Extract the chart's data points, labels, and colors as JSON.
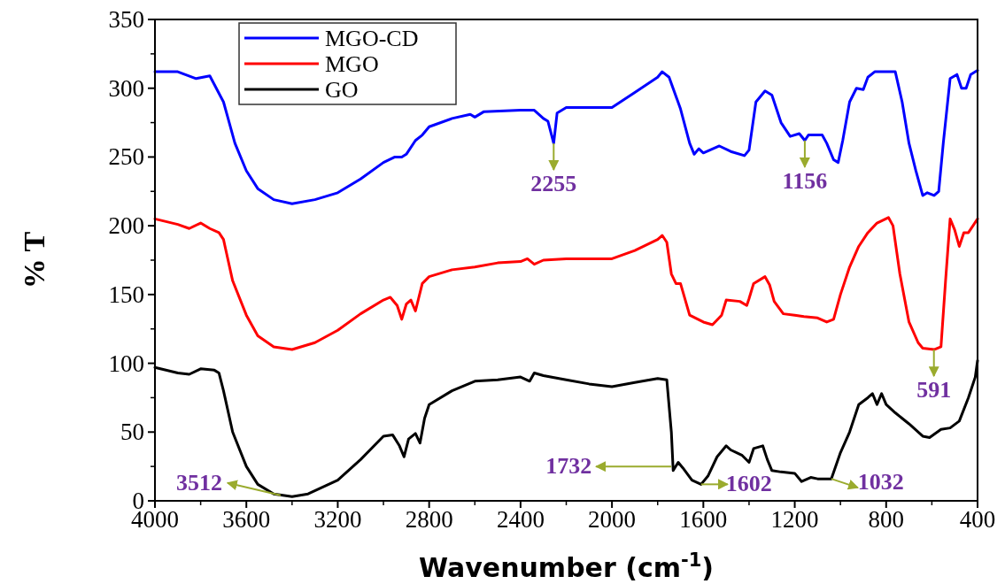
{
  "chart_data": {
    "type": "line",
    "xlabel": "Wavenumber (cm$^{-1}$)",
    "ylabel": "% T",
    "xlim": [
      4000,
      400
    ],
    "xticks": [
      4000,
      3600,
      3200,
      2800,
      2400,
      2000,
      1600,
      1200,
      800,
      400
    ],
    "ylim": [
      0,
      350
    ],
    "yticks": [
      0,
      50,
      100,
      150,
      200,
      250,
      300,
      350
    ],
    "grid": false,
    "legend": "top left",
    "line_style": "solid",
    "series": [
      {
        "name": "MGO-CD",
        "color": "#0000ff",
        "x": [
          4000,
          3900,
          3820,
          3760,
          3700,
          3650,
          3600,
          3550,
          3480,
          3400,
          3300,
          3200,
          3100,
          3000,
          2950,
          2920,
          2900,
          2860,
          2830,
          2800,
          2700,
          2620,
          2600,
          2560,
          2400,
          2340,
          2300,
          2280,
          2255,
          2240,
          2200,
          2100,
          2000,
          1900,
          1800,
          1780,
          1750,
          1700,
          1660,
          1640,
          1620,
          1600,
          1530,
          1480,
          1420,
          1400,
          1370,
          1330,
          1300,
          1260,
          1220,
          1180,
          1156,
          1140,
          1080,
          1060,
          1030,
          1010,
          990,
          960,
          930,
          900,
          880,
          850,
          760,
          730,
          700,
          670,
          640,
          620,
          590,
          570,
          550,
          520,
          490,
          470,
          450,
          430,
          400
        ],
        "values": [
          312,
          312,
          307,
          309,
          290,
          260,
          240,
          227,
          219,
          216,
          219,
          224,
          234,
          246,
          250,
          250,
          252,
          262,
          266,
          272,
          278,
          281,
          279,
          283,
          284,
          284,
          278,
          276,
          260,
          282,
          286,
          286,
          286,
          297,
          308,
          312,
          308,
          285,
          260,
          252,
          256,
          253,
          258,
          254,
          251,
          255,
          290,
          298,
          295,
          275,
          265,
          267,
          262,
          266,
          266,
          260,
          248,
          246,
          262,
          290,
          300,
          299,
          308,
          312,
          312,
          290,
          260,
          240,
          222,
          224,
          222,
          225,
          260,
          307,
          310,
          300,
          300,
          310,
          313
        ]
      },
      {
        "name": "MGO",
        "color": "#ff0000",
        "x": [
          4000,
          3900,
          3850,
          3800,
          3760,
          3720,
          3700,
          3660,
          3600,
          3550,
          3480,
          3400,
          3300,
          3200,
          3100,
          3000,
          2970,
          2940,
          2920,
          2900,
          2880,
          2860,
          2830,
          2800,
          2700,
          2600,
          2500,
          2400,
          2370,
          2340,
          2300,
          2200,
          2000,
          1900,
          1800,
          1780,
          1760,
          1740,
          1720,
          1700,
          1660,
          1600,
          1560,
          1520,
          1500,
          1440,
          1410,
          1400,
          1380,
          1330,
          1310,
          1290,
          1250,
          1200,
          1160,
          1100,
          1060,
          1030,
          1000,
          960,
          920,
          880,
          840,
          790,
          770,
          740,
          700,
          660,
          640,
          590,
          560,
          540,
          520,
          500,
          480,
          460,
          440,
          400
        ],
        "values": [
          205,
          201,
          198,
          202,
          198,
          195,
          190,
          160,
          135,
          120,
          112,
          110,
          115,
          124,
          136,
          146,
          148,
          142,
          132,
          143,
          146,
          138,
          158,
          163,
          168,
          170,
          173,
          174,
          176,
          172,
          175,
          176,
          176,
          182,
          190,
          193,
          188,
          165,
          158,
          158,
          135,
          130,
          128,
          135,
          146,
          145,
          142,
          147,
          158,
          163,
          157,
          145,
          136,
          135,
          134,
          133,
          130,
          132,
          150,
          170,
          185,
          195,
          202,
          206,
          200,
          165,
          130,
          115,
          111,
          110,
          112,
          160,
          205,
          197,
          185,
          195,
          195,
          205
        ]
      },
      {
        "name": "GO",
        "color": "#000000",
        "x": [
          4000,
          3900,
          3850,
          3800,
          3740,
          3720,
          3700,
          3660,
          3600,
          3550,
          3480,
          3400,
          3330,
          3200,
          3100,
          3000,
          2960,
          2930,
          2910,
          2890,
          2860,
          2840,
          2820,
          2800,
          2700,
          2600,
          2500,
          2400,
          2360,
          2340,
          2300,
          2200,
          2100,
          2000,
          1900,
          1800,
          1760,
          1740,
          1732,
          1710,
          1690,
          1650,
          1610,
          1580,
          1540,
          1500,
          1480,
          1430,
          1400,
          1380,
          1340,
          1320,
          1300,
          1260,
          1200,
          1170,
          1130,
          1100,
          1040,
          1000,
          960,
          920,
          880,
          860,
          840,
          820,
          800,
          760,
          700,
          640,
          610,
          560,
          520,
          480,
          440,
          410,
          400
        ],
        "values": [
          97,
          93,
          92,
          96,
          95,
          93,
          80,
          50,
          25,
          12,
          5,
          3,
          5,
          15,
          30,
          47,
          48,
          40,
          32,
          45,
          49,
          42,
          60,
          70,
          80,
          87,
          88,
          90,
          87,
          93,
          91,
          88,
          85,
          83,
          86,
          89,
          88,
          50,
          22,
          28,
          24,
          15,
          12,
          18,
          32,
          40,
          37,
          33,
          28,
          38,
          40,
          30,
          22,
          21,
          20,
          14,
          17,
          16,
          16,
          35,
          50,
          70,
          75,
          78,
          70,
          78,
          70,
          64,
          56,
          47,
          46,
          52,
          53,
          58,
          75,
          90,
          102
        ]
      }
    ],
    "annotations": [
      {
        "text": "2255",
        "x": 2255,
        "y": 260
      },
      {
        "text": "1156",
        "x": 1156,
        "y": 262
      },
      {
        "text": "591",
        "x": 591,
        "y": 110
      },
      {
        "text": "3512",
        "x": 3450,
        "y": 4
      },
      {
        "text": "1732",
        "x": 1740,
        "y": 25
      },
      {
        "text": "1602",
        "x": 1610,
        "y": 12
      },
      {
        "text": "1032",
        "x": 1040,
        "y": 16
      }
    ]
  }
}
